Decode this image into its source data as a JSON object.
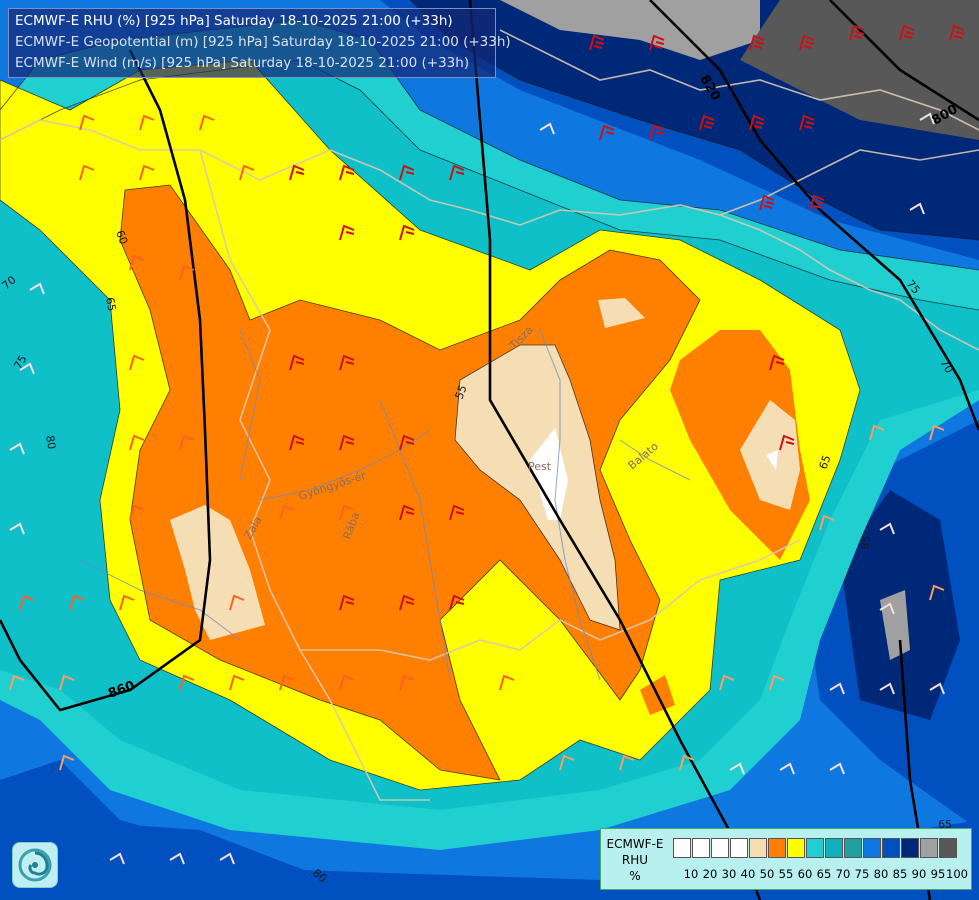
{
  "titles": {
    "line1": "ECMWF-E RHU (%) [925 hPa] Saturday 18-10-2025 21:00 (+33h)",
    "line2": "ECMWF-E Geopotential (m) [925 hPa] Saturday 18-10-2025 21:00 (+33h)",
    "line3": "ECMWF-E Wind (m/s) [925 hPa] Saturday 18-10-2025 21:00 (+33h)"
  },
  "legend": {
    "title_line1": "ECMWF-E",
    "title_line2": "RHU",
    "title_line3": "%",
    "ticks": [
      "10",
      "20",
      "30",
      "40",
      "50",
      "55",
      "60",
      "65",
      "70",
      "75",
      "80",
      "85",
      "90",
      "95",
      "100"
    ],
    "colors": [
      "#ffffff",
      "#ffffff",
      "#ffffff",
      "#ffffff",
      "#f5deb3",
      "#ff8000",
      "#ffff00",
      "#20d0d0",
      "#10b0c0",
      "#22a0a0",
      "#0f78e0",
      "#0050c0",
      "#002878",
      "#a0a0a0",
      "#585858"
    ]
  },
  "map_labels": {
    "city": "Pest",
    "geo_820": "820",
    "geo_800": "800",
    "geo_860": "860",
    "rh_60": "60",
    "rh_65_a": "65",
    "rh_70_a": "70",
    "rh_75_a": "75",
    "rh_80_a": "80",
    "rh_85_a": "85",
    "rh_55": "55",
    "rh_65_b": "65",
    "rh_70_b": "70",
    "rh_75_b": "75",
    "rh_80_b": "80",
    "rh_85_b": "85",
    "rh_65_c": "65",
    "river_1": "Gyöngyös-ér",
    "river_2": "Zala",
    "river_3": "Rába",
    "river_4": "Balato",
    "river_5": "Tisza"
  },
  "colors": {
    "title_bg": "#14287a",
    "ocean_dark": "#002878",
    "geopotential_line": "#000000"
  }
}
